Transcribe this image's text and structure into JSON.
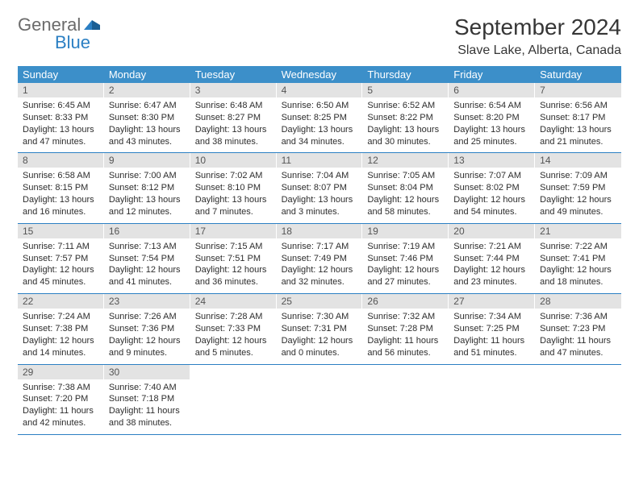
{
  "logo": {
    "general": "General",
    "blue": "Blue"
  },
  "title": "September 2024",
  "location": "Slave Lake, Alberta, Canada",
  "colors": {
    "headerBg": "#3c8fc9",
    "dateBarBg": "#e3e3e3",
    "rule": "#2b7fc3",
    "textDark": "#363636",
    "logoGray": "#6b6b6b",
    "logoBlue": "#2b7fc3"
  },
  "dayNames": [
    "Sunday",
    "Monday",
    "Tuesday",
    "Wednesday",
    "Thursday",
    "Friday",
    "Saturday"
  ],
  "weeks": [
    [
      {
        "n": 1,
        "sr": "6:45 AM",
        "ss": "8:33 PM",
        "dl": "13 hours and 47 minutes."
      },
      {
        "n": 2,
        "sr": "6:47 AM",
        "ss": "8:30 PM",
        "dl": "13 hours and 43 minutes."
      },
      {
        "n": 3,
        "sr": "6:48 AM",
        "ss": "8:27 PM",
        "dl": "13 hours and 38 minutes."
      },
      {
        "n": 4,
        "sr": "6:50 AM",
        "ss": "8:25 PM",
        "dl": "13 hours and 34 minutes."
      },
      {
        "n": 5,
        "sr": "6:52 AM",
        "ss": "8:22 PM",
        "dl": "13 hours and 30 minutes."
      },
      {
        "n": 6,
        "sr": "6:54 AM",
        "ss": "8:20 PM",
        "dl": "13 hours and 25 minutes."
      },
      {
        "n": 7,
        "sr": "6:56 AM",
        "ss": "8:17 PM",
        "dl": "13 hours and 21 minutes."
      }
    ],
    [
      {
        "n": 8,
        "sr": "6:58 AM",
        "ss": "8:15 PM",
        "dl": "13 hours and 16 minutes."
      },
      {
        "n": 9,
        "sr": "7:00 AM",
        "ss": "8:12 PM",
        "dl": "13 hours and 12 minutes."
      },
      {
        "n": 10,
        "sr": "7:02 AM",
        "ss": "8:10 PM",
        "dl": "13 hours and 7 minutes."
      },
      {
        "n": 11,
        "sr": "7:04 AM",
        "ss": "8:07 PM",
        "dl": "13 hours and 3 minutes."
      },
      {
        "n": 12,
        "sr": "7:05 AM",
        "ss": "8:04 PM",
        "dl": "12 hours and 58 minutes."
      },
      {
        "n": 13,
        "sr": "7:07 AM",
        "ss": "8:02 PM",
        "dl": "12 hours and 54 minutes."
      },
      {
        "n": 14,
        "sr": "7:09 AM",
        "ss": "7:59 PM",
        "dl": "12 hours and 49 minutes."
      }
    ],
    [
      {
        "n": 15,
        "sr": "7:11 AM",
        "ss": "7:57 PM",
        "dl": "12 hours and 45 minutes."
      },
      {
        "n": 16,
        "sr": "7:13 AM",
        "ss": "7:54 PM",
        "dl": "12 hours and 41 minutes."
      },
      {
        "n": 17,
        "sr": "7:15 AM",
        "ss": "7:51 PM",
        "dl": "12 hours and 36 minutes."
      },
      {
        "n": 18,
        "sr": "7:17 AM",
        "ss": "7:49 PM",
        "dl": "12 hours and 32 minutes."
      },
      {
        "n": 19,
        "sr": "7:19 AM",
        "ss": "7:46 PM",
        "dl": "12 hours and 27 minutes."
      },
      {
        "n": 20,
        "sr": "7:21 AM",
        "ss": "7:44 PM",
        "dl": "12 hours and 23 minutes."
      },
      {
        "n": 21,
        "sr": "7:22 AM",
        "ss": "7:41 PM",
        "dl": "12 hours and 18 minutes."
      }
    ],
    [
      {
        "n": 22,
        "sr": "7:24 AM",
        "ss": "7:38 PM",
        "dl": "12 hours and 14 minutes."
      },
      {
        "n": 23,
        "sr": "7:26 AM",
        "ss": "7:36 PM",
        "dl": "12 hours and 9 minutes."
      },
      {
        "n": 24,
        "sr": "7:28 AM",
        "ss": "7:33 PM",
        "dl": "12 hours and 5 minutes."
      },
      {
        "n": 25,
        "sr": "7:30 AM",
        "ss": "7:31 PM",
        "dl": "12 hours and 0 minutes."
      },
      {
        "n": 26,
        "sr": "7:32 AM",
        "ss": "7:28 PM",
        "dl": "11 hours and 56 minutes."
      },
      {
        "n": 27,
        "sr": "7:34 AM",
        "ss": "7:25 PM",
        "dl": "11 hours and 51 minutes."
      },
      {
        "n": 28,
        "sr": "7:36 AM",
        "ss": "7:23 PM",
        "dl": "11 hours and 47 minutes."
      }
    ],
    [
      {
        "n": 29,
        "sr": "7:38 AM",
        "ss": "7:20 PM",
        "dl": "11 hours and 42 minutes."
      },
      {
        "n": 30,
        "sr": "7:40 AM",
        "ss": "7:18 PM",
        "dl": "11 hours and 38 minutes."
      },
      null,
      null,
      null,
      null,
      null
    ]
  ],
  "labels": {
    "sunrise": "Sunrise:",
    "sunset": "Sunset:",
    "daylight": "Daylight:"
  }
}
